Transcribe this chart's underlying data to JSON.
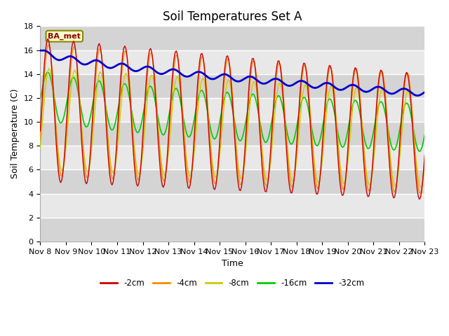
{
  "title": "Soil Temperatures Set A",
  "xlabel": "Time",
  "ylabel": "Soil Temperature (C)",
  "ylim": [
    0,
    18
  ],
  "yticks": [
    0,
    2,
    4,
    6,
    8,
    10,
    12,
    14,
    16,
    18
  ],
  "xtick_labels": [
    "Nov 8",
    "Nov 9",
    "Nov 10",
    "Nov 11",
    "Nov 12",
    "Nov 13",
    "Nov 14",
    "Nov 15",
    "Nov 16",
    "Nov 17",
    "Nov 18",
    "Nov 19",
    "Nov 20",
    "Nov 21",
    "Nov 22",
    "Nov 23"
  ],
  "station_label": "BA_met",
  "legend_labels": [
    "-2cm",
    "-4cm",
    "-8cm",
    "-16cm",
    "-32cm"
  ],
  "line_colors": [
    "#cc0000",
    "#ff8800",
    "#cccc00",
    "#00cc00",
    "#0000cc"
  ],
  "background_color": "#ffffff",
  "plot_bg_color": "#e8e8e8",
  "title_fontsize": 12,
  "label_fontsize": 9,
  "tick_fontsize": 8
}
